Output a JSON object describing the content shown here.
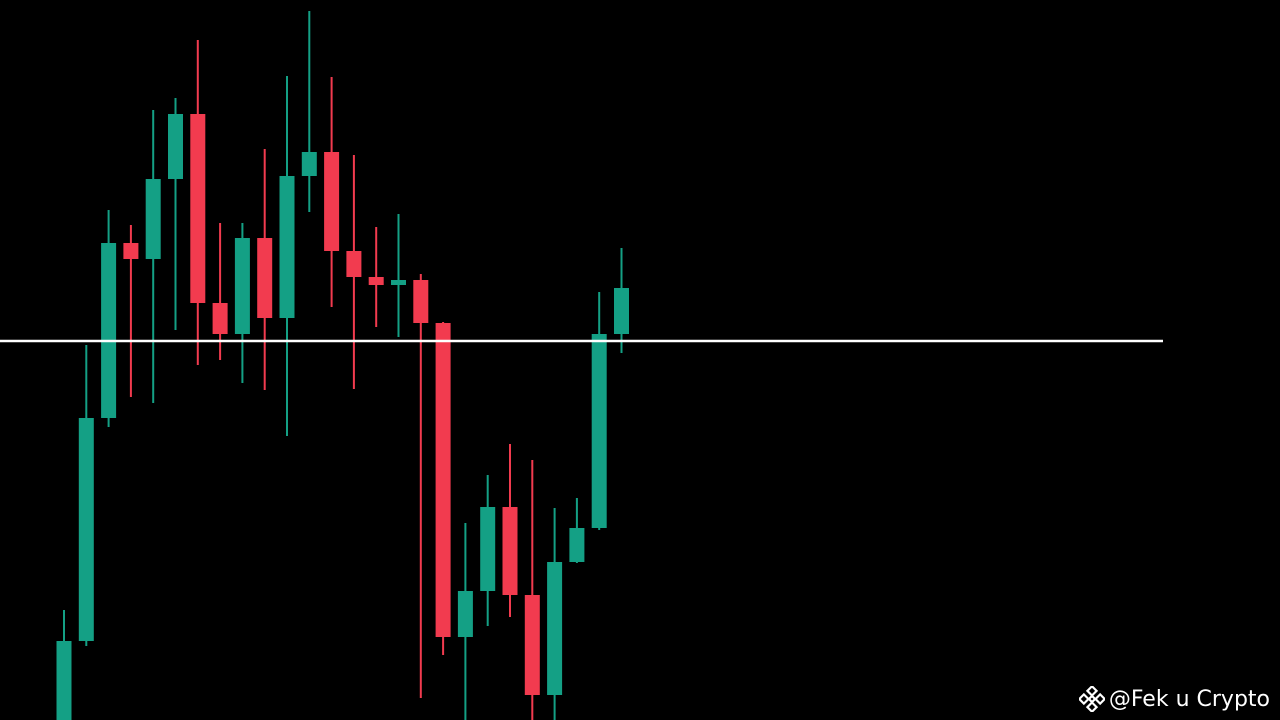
{
  "chart_data": {
    "type": "candlestick",
    "colors": {
      "background": "#000000",
      "up": "#14a085",
      "down": "#f23b4f",
      "level_line": "#ffffff"
    },
    "ylim": [
      0,
      720
    ],
    "level": 379,
    "series": [
      {
        "o": 0,
        "h": 110,
        "l": -30,
        "c": 79
      },
      {
        "o": 79,
        "h": 375,
        "l": 74,
        "c": 302
      },
      {
        "o": 302,
        "h": 510,
        "l": 293,
        "c": 477
      },
      {
        "o": 477,
        "h": 495,
        "l": 323,
        "c": 461
      },
      {
        "o": 461,
        "h": 610,
        "l": 317,
        "c": 541
      },
      {
        "o": 541,
        "h": 622,
        "l": 390,
        "c": 606
      },
      {
        "o": 606,
        "h": 680,
        "l": 355,
        "c": 417
      },
      {
        "o": 417,
        "h": 497,
        "l": 360,
        "c": 386
      },
      {
        "o": 386,
        "h": 497,
        "l": 337,
        "c": 482
      },
      {
        "o": 482,
        "h": 571,
        "l": 330,
        "c": 402
      },
      {
        "o": 402,
        "h": 644,
        "l": 284,
        "c": 544
      },
      {
        "o": 544,
        "h": 709,
        "l": 508,
        "c": 568
      },
      {
        "o": 568,
        "h": 643,
        "l": 413,
        "c": 469
      },
      {
        "o": 469,
        "h": 565,
        "l": 331,
        "c": 443
      },
      {
        "o": 443,
        "h": 493,
        "l": 393,
        "c": 435
      },
      {
        "o": 435,
        "h": 506,
        "l": 383,
        "c": 440
      },
      {
        "o": 440,
        "h": 446,
        "l": 22,
        "c": 397
      },
      {
        "o": 397,
        "h": 398,
        "l": 65,
        "c": 83
      },
      {
        "o": 83,
        "h": 197,
        "l": -10,
        "c": 129
      },
      {
        "o": 129,
        "h": 245,
        "l": 94,
        "c": 213
      },
      {
        "o": 213,
        "h": 276,
        "l": 103,
        "c": 125
      },
      {
        "o": 125,
        "h": 260,
        "l": -10,
        "c": 25
      },
      {
        "o": 25,
        "h": 212,
        "l": 0,
        "c": 158
      },
      {
        "o": 158,
        "h": 222,
        "l": 157,
        "c": 192
      },
      {
        "o": 192,
        "h": 428,
        "l": 190,
        "c": 386
      },
      {
        "o": 386,
        "h": 472,
        "l": 367,
        "c": 432
      }
    ]
  },
  "watermark": {
    "text": "@Fek  u Crypto",
    "icon": "binance-diamond-icon"
  }
}
